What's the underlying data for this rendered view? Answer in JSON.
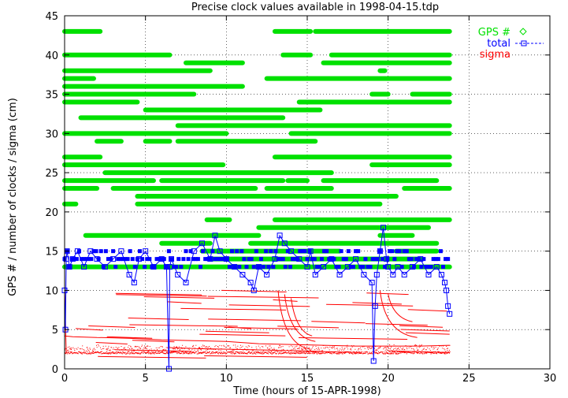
{
  "chart_data": {
    "type": "scatter",
    "title": "Precise clock values available in 1998-04-15.tdp",
    "xlabel": "Time (hours of 15-APR-1998)",
    "ylabel": "GPS # / number of clocks / sigma (cm)",
    "xlim": [
      0,
      30
    ],
    "ylim": [
      0,
      45
    ],
    "xticks": [
      "0",
      "5",
      "10",
      "15",
      "20",
      "25",
      "30"
    ],
    "yticks": [
      "0",
      "5",
      "10",
      "15",
      "20",
      "25",
      "30",
      "35",
      "40",
      "45"
    ],
    "grid": true,
    "legend_position": "top-right",
    "colors": {
      "gps": "#00e000",
      "total": "#0000ff",
      "sigma": "#ff0000"
    },
    "series": [
      {
        "name": "GPS #",
        "marker": "diamond",
        "segments": [
          [
            43,
            0,
            2.2
          ],
          [
            43,
            13,
            15.2
          ],
          [
            43,
            15.5,
            23.8
          ],
          [
            40,
            0,
            6.5
          ],
          [
            40,
            13.5,
            15.2
          ],
          [
            40,
            16.5,
            23.8
          ],
          [
            39,
            7.5,
            11
          ],
          [
            39,
            16,
            23.8
          ],
          [
            38,
            0,
            9
          ],
          [
            38,
            19.5,
            19.8
          ],
          [
            37,
            0,
            1.8
          ],
          [
            37,
            12.5,
            23.8
          ],
          [
            36,
            0,
            11
          ],
          [
            35,
            0,
            8
          ],
          [
            35,
            19,
            20
          ],
          [
            35,
            21.5,
            23.8
          ],
          [
            34,
            0,
            4.5
          ],
          [
            34,
            14.5,
            23.8
          ],
          [
            33,
            5,
            15.8
          ],
          [
            32,
            1,
            13.5
          ],
          [
            31,
            7,
            23.8
          ],
          [
            30,
            0,
            10
          ],
          [
            30,
            14,
            23.8
          ],
          [
            29,
            2,
            3.5
          ],
          [
            29,
            5,
            6.5
          ],
          [
            29,
            7,
            15.5
          ],
          [
            27,
            0,
            2.2
          ],
          [
            27,
            13,
            23.8
          ],
          [
            26,
            0,
            9.8
          ],
          [
            26,
            19,
            23.8
          ],
          [
            25,
            2.5,
            16.5
          ],
          [
            24,
            0,
            5.5
          ],
          [
            24,
            6,
            13.5
          ],
          [
            24,
            13.8,
            15
          ],
          [
            24,
            16,
            23
          ],
          [
            23,
            0,
            2
          ],
          [
            23,
            3,
            11.8
          ],
          [
            23,
            12.5,
            16.5
          ],
          [
            23,
            21,
            23.8
          ],
          [
            22,
            4.5,
            20.5
          ],
          [
            21,
            0,
            0.7
          ],
          [
            21,
            4.5,
            19.5
          ],
          [
            19,
            8.8,
            10.2
          ],
          [
            19,
            13,
            23.8
          ],
          [
            18,
            12,
            22.5
          ],
          [
            17,
            1.3,
            12
          ],
          [
            17,
            19.5,
            21.5
          ],
          [
            16,
            6,
            9
          ],
          [
            16,
            11.5,
            23
          ],
          [
            15,
            8.5,
            17
          ],
          [
            15,
            20.5,
            23
          ],
          [
            14,
            9,
            22
          ],
          [
            13,
            0,
            23.8
          ]
        ]
      },
      {
        "name": "total",
        "marker": "square",
        "x": [
          0,
          0.05,
          0.1,
          0.15,
          0.3,
          0.5,
          0.8,
          1.2,
          1.6,
          2,
          2.5,
          3,
          3.5,
          4,
          4.3,
          4.6,
          5,
          5.5,
          6,
          6.3,
          6.45,
          6.5,
          6.6,
          7,
          7.5,
          8,
          8.5,
          9,
          9.3,
          9.6,
          10,
          10.5,
          11,
          11.5,
          11.7,
          12,
          12.5,
          13,
          13.3,
          13.6,
          14,
          14.5,
          15,
          15.2,
          15.5,
          16,
          16.5,
          17,
          17.5,
          18,
          18.5,
          19,
          19.1,
          19.2,
          19.3,
          19.5,
          19.7,
          19.9,
          20,
          20.3,
          20.6,
          21,
          21.5,
          22,
          22.5,
          23,
          23.3,
          23.5,
          23.6,
          23.7,
          23.8
        ],
        "y": [
          10,
          5,
          14,
          15,
          13,
          14,
          15,
          13,
          15,
          14,
          13,
          14,
          15,
          12,
          11,
          14,
          15,
          13,
          14,
          13,
          0,
          13,
          14,
          12,
          11,
          15,
          16,
          14,
          17,
          15,
          14,
          13,
          12,
          11,
          10,
          13,
          12,
          14,
          17,
          16,
          15,
          14,
          13,
          15,
          12,
          13,
          14,
          12,
          13,
          14,
          12,
          11,
          1,
          8,
          12,
          15,
          18,
          14,
          13,
          12,
          13,
          12,
          13,
          14,
          12,
          13,
          12,
          11,
          10,
          8,
          7
        ]
      },
      {
        "name": "sigma",
        "marker": "dot",
        "baseline": [
          [
            0,
            4.2
          ],
          [
            0.5,
            4.1
          ],
          [
            2,
            4
          ],
          [
            4,
            3.9
          ],
          [
            6,
            3.7
          ],
          [
            8,
            3.6
          ],
          [
            10,
            3.5
          ],
          [
            12,
            3.2
          ],
          [
            14,
            3.1
          ],
          [
            16,
            3
          ],
          [
            18,
            2.9
          ],
          [
            20,
            2.9
          ],
          [
            22,
            2.9
          ],
          [
            23.8,
            3
          ]
        ],
        "levels": [
          2,
          2.5,
          3,
          4,
          5,
          6,
          8,
          9,
          10
        ]
      }
    ]
  }
}
